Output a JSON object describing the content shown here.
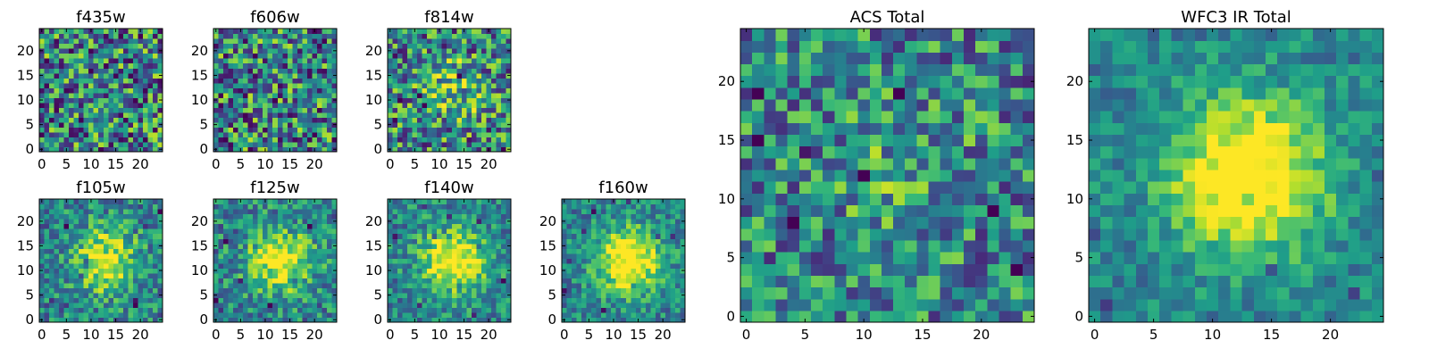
{
  "chart_data": [
    {
      "type": "heatmap",
      "title": "f435w",
      "peak": 0.0,
      "noise": 0.9,
      "xticks": [
        0,
        5,
        10,
        15,
        20
      ],
      "yticks": [
        0,
        5,
        10,
        15,
        20
      ],
      "xlim": [
        0,
        24
      ],
      "ylim": [
        0,
        24
      ],
      "colormap": "viridis"
    },
    {
      "type": "heatmap",
      "title": "f606w",
      "peak": 0.0,
      "noise": 0.9,
      "xticks": [
        0,
        5,
        10,
        15,
        20
      ],
      "yticks": [
        0,
        5,
        10,
        15,
        20
      ],
      "xlim": [
        0,
        24
      ],
      "ylim": [
        0,
        24
      ],
      "colormap": "viridis"
    },
    {
      "type": "heatmap",
      "title": "f814w",
      "peak": 0.3,
      "noise": 0.85,
      "xticks": [
        0,
        5,
        10,
        15,
        20
      ],
      "yticks": [
        0,
        5,
        10,
        15,
        20
      ],
      "xlim": [
        0,
        24
      ],
      "ylim": [
        0,
        24
      ],
      "colormap": "viridis"
    },
    {
      "type": "heatmap",
      "title": "f105w",
      "peak": 0.55,
      "noise": 0.55,
      "xticks": [
        0,
        5,
        10,
        15,
        20
      ],
      "yticks": [
        0,
        5,
        10,
        15,
        20
      ],
      "xlim": [
        0,
        24
      ],
      "ylim": [
        0,
        24
      ],
      "colormap": "viridis"
    },
    {
      "type": "heatmap",
      "title": "f125w",
      "peak": 0.55,
      "noise": 0.55,
      "xticks": [
        0,
        5,
        10,
        15,
        20
      ],
      "yticks": [
        0,
        5,
        10,
        15,
        20
      ],
      "xlim": [
        0,
        24
      ],
      "ylim": [
        0,
        24
      ],
      "colormap": "viridis"
    },
    {
      "type": "heatmap",
      "title": "f140w",
      "peak": 0.65,
      "noise": 0.5,
      "xticks": [
        0,
        5,
        10,
        15,
        20
      ],
      "yticks": [
        0,
        5,
        10,
        15,
        20
      ],
      "xlim": [
        0,
        24
      ],
      "ylim": [
        0,
        24
      ],
      "colormap": "viridis"
    },
    {
      "type": "heatmap",
      "title": "f160w",
      "peak": 0.7,
      "noise": 0.45,
      "xticks": [
        0,
        5,
        10,
        15,
        20
      ],
      "yticks": [
        0,
        5,
        10,
        15,
        20
      ],
      "xlim": [
        0,
        24
      ],
      "ylim": [
        0,
        24
      ],
      "colormap": "viridis"
    },
    {
      "type": "heatmap",
      "title": "ACS Total",
      "peak": 0.15,
      "noise": 0.7,
      "xticks": [
        0,
        5,
        10,
        15,
        20
      ],
      "yticks": [
        0,
        5,
        10,
        15,
        20
      ],
      "xlim": [
        0,
        24
      ],
      "ylim": [
        0,
        24
      ],
      "colormap": "viridis"
    },
    {
      "type": "heatmap",
      "title": "WFC3 IR Total",
      "peak": 0.75,
      "noise": 0.35,
      "xticks": [
        0,
        5,
        10,
        15,
        20
      ],
      "yticks": [
        0,
        5,
        10,
        15,
        20
      ],
      "xlim": [
        0,
        24
      ],
      "ylim": [
        0,
        24
      ],
      "colormap": "viridis"
    }
  ]
}
